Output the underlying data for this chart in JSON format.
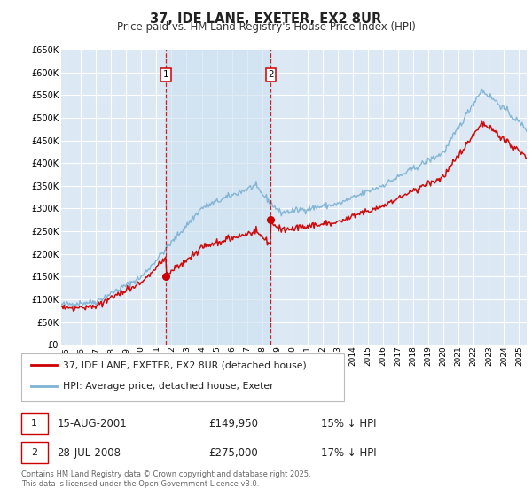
{
  "title": "37, IDE LANE, EXETER, EX2 8UR",
  "subtitle": "Price paid vs. HM Land Registry's House Price Index (HPI)",
  "ylim": [
    0,
    650000
  ],
  "ytick_values": [
    0,
    50000,
    100000,
    150000,
    200000,
    250000,
    300000,
    350000,
    400000,
    450000,
    500000,
    550000,
    600000,
    650000
  ],
  "xlim_start": 1994.7,
  "xlim_end": 2025.5,
  "transaction1_x": 2001.62,
  "transaction1_y": 149950,
  "transaction2_x": 2008.57,
  "transaction2_y": 275000,
  "bg_color": "#dce9f5",
  "fig_bg_color": "#ffffff",
  "grid_color": "#ffffff",
  "line_red_color": "#cc0000",
  "line_blue_color": "#7fb3d3",
  "shade_color": "#ccdff0",
  "marker_box_color": "#cc0000",
  "legend_label1": "37, IDE LANE, EXETER, EX2 8UR (detached house)",
  "legend_label2": "HPI: Average price, detached house, Exeter",
  "footer": "Contains HM Land Registry data © Crown copyright and database right 2025.\nThis data is licensed under the Open Government Licence v3.0.",
  "note1_label": "1",
  "note1_date": "15-AUG-2001",
  "note1_price": "£149,950",
  "note1_hpi": "15% ↓ HPI",
  "note2_label": "2",
  "note2_date": "28-JUL-2008",
  "note2_price": "£275,000",
  "note2_hpi": "17% ↓ HPI"
}
